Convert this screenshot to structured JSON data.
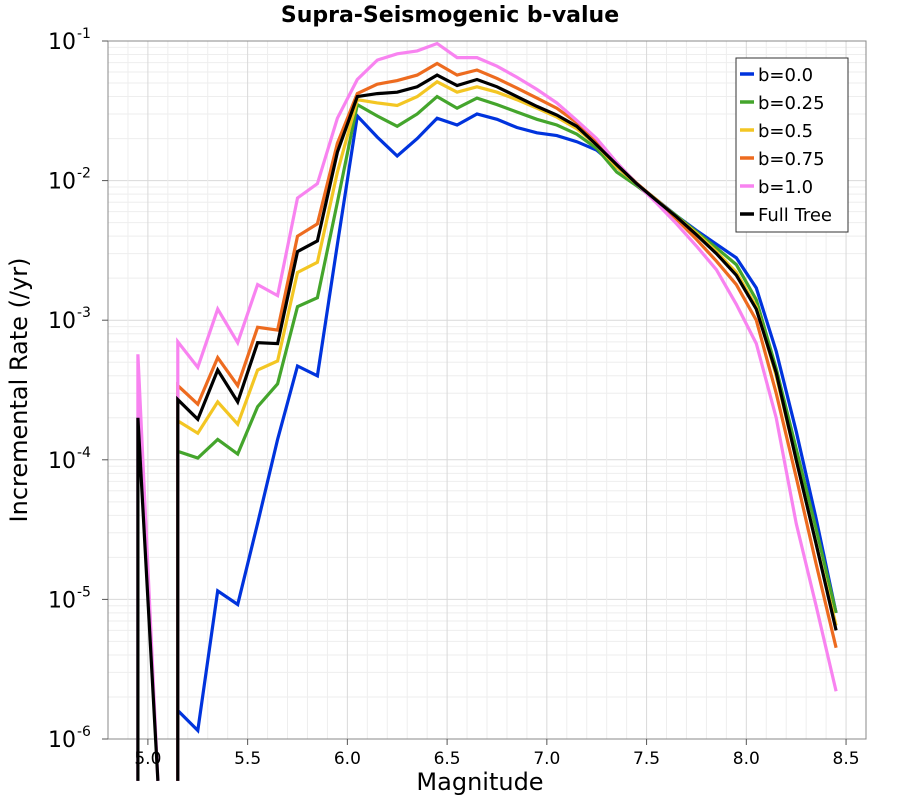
{
  "chart_data": {
    "type": "line",
    "title": "Supra-Seismogenic b-value",
    "xlabel": "Magnitude",
    "ylabel": "Incremental Rate (/yr)",
    "xlim": [
      4.8,
      8.6
    ],
    "ylim": [
      1e-06,
      0.1
    ],
    "yscale": "log",
    "grid": true,
    "legend_position": "top-right",
    "x_ticks": [
      5.0,
      5.5,
      6.0,
      6.5,
      7.0,
      7.5,
      8.0,
      8.5
    ],
    "x_tick_labels": [
      "5.0",
      "5.5",
      "6.0",
      "6.5",
      "7.0",
      "7.5",
      "8.0",
      "8.5"
    ],
    "y_ticks": [
      {
        "value": 1e-06,
        "base": "10",
        "exp": "-6"
      },
      {
        "value": 1e-05,
        "base": "10",
        "exp": "-5"
      },
      {
        "value": 0.0001,
        "base": "10",
        "exp": "-4"
      },
      {
        "value": 0.001,
        "base": "10",
        "exp": "-3"
      },
      {
        "value": 0.01,
        "base": "10",
        "exp": "-2"
      },
      {
        "value": 0.1,
        "base": "10",
        "exp": "-1"
      }
    ],
    "x": [
      4.85,
      4.95,
      5.05,
      5.15,
      5.25,
      5.35,
      5.45,
      5.55,
      5.65,
      5.75,
      5.85,
      5.95,
      6.05,
      6.15,
      6.25,
      6.35,
      6.45,
      6.55,
      6.65,
      6.75,
      6.85,
      6.95,
      7.05,
      7.15,
      7.25,
      7.35,
      7.45,
      7.55,
      7.65,
      7.75,
      7.85,
      7.95,
      8.05,
      8.15,
      8.25,
      8.35,
      8.45
    ],
    "series": [
      {
        "name": "b=0.0",
        "color": "#0033dd",
        "values": [
          null,
          null,
          null,
          1.6e-06,
          1.15e-06,
          1.15e-05,
          9.2e-06,
          3.5e-05,
          0.00014,
          0.00047,
          0.0004,
          0.0035,
          0.029,
          0.0205,
          0.015,
          0.02,
          0.028,
          0.025,
          0.03,
          0.0275,
          0.024,
          0.022,
          0.021,
          0.019,
          0.0165,
          0.0125,
          0.0095,
          0.0073,
          0.0056,
          0.0044,
          0.0035,
          0.0028,
          0.0017,
          0.0006,
          0.00016,
          3.8e-05,
          8e-06
        ]
      },
      {
        "name": "b=0.25",
        "color": "#44a52c",
        "values": [
          null,
          null,
          null,
          0.000115,
          0.000103,
          0.00014,
          0.00011,
          0.00024,
          0.00035,
          0.00125,
          0.00145,
          0.007,
          0.035,
          0.029,
          0.0245,
          0.03,
          0.04,
          0.033,
          0.039,
          0.035,
          0.031,
          0.0275,
          0.025,
          0.0215,
          0.017,
          0.0115,
          0.0092,
          0.0072,
          0.0056,
          0.0043,
          0.0033,
          0.0025,
          0.0014,
          0.00045,
          0.00012,
          3.2e-05,
          8e-06
        ]
      },
      {
        "name": "b=0.5",
        "color": "#f3c623",
        "values": [
          null,
          null,
          null,
          0.00019,
          0.000155,
          0.00026,
          0.00018,
          0.00044,
          0.00051,
          0.0022,
          0.0026,
          0.0115,
          0.038,
          0.036,
          0.0345,
          0.04,
          0.051,
          0.043,
          0.047,
          0.043,
          0.038,
          0.033,
          0.0285,
          0.0235,
          0.018,
          0.0125,
          0.0095,
          0.0073,
          0.0055,
          0.0042,
          0.0031,
          0.0022,
          0.00125,
          0.0004,
          0.0001,
          2.5e-05,
          6.5e-06
        ]
      },
      {
        "name": "b=0.75",
        "color": "#ed6b1f",
        "values": [
          null,
          null,
          null,
          0.00034,
          0.00025,
          0.00054,
          0.00034,
          0.00089,
          0.00085,
          0.004,
          0.0049,
          0.0185,
          0.042,
          0.049,
          0.052,
          0.057,
          0.069,
          0.057,
          0.062,
          0.054,
          0.046,
          0.039,
          0.033,
          0.026,
          0.019,
          0.0132,
          0.0096,
          0.0072,
          0.0053,
          0.0038,
          0.00265,
          0.0018,
          0.001,
          0.0003,
          7.5e-05,
          1.8e-05,
          4.5e-06
        ]
      },
      {
        "name": "b=1.0",
        "color": "#f883f0",
        "values": [
          null,
          0.00057,
          null,
          0.0007,
          0.00046,
          0.0012,
          0.00069,
          0.0018,
          0.0015,
          0.0075,
          0.0095,
          0.028,
          0.053,
          0.073,
          0.081,
          0.085,
          0.096,
          0.076,
          0.076,
          0.066,
          0.055,
          0.045,
          0.036,
          0.027,
          0.02,
          0.0135,
          0.0095,
          0.0069,
          0.0049,
          0.0034,
          0.0023,
          0.0013,
          0.00068,
          0.0002,
          3.5e-05,
          9e-06,
          2.2e-06
        ]
      },
      {
        "name": "Full Tree",
        "color": "#000000",
        "values": [
          null,
          0.0002,
          null,
          0.00027,
          0.000195,
          0.00044,
          0.00026,
          0.00069,
          0.00068,
          0.0031,
          0.0037,
          0.016,
          0.04,
          0.042,
          0.043,
          0.047,
          0.057,
          0.048,
          0.053,
          0.047,
          0.04,
          0.034,
          0.0295,
          0.0245,
          0.018,
          0.013,
          0.0095,
          0.0072,
          0.0055,
          0.0041,
          0.003,
          0.0021,
          0.0012,
          0.00042,
          0.0001,
          2.5e-05,
          6e-06
        ]
      }
    ]
  }
}
